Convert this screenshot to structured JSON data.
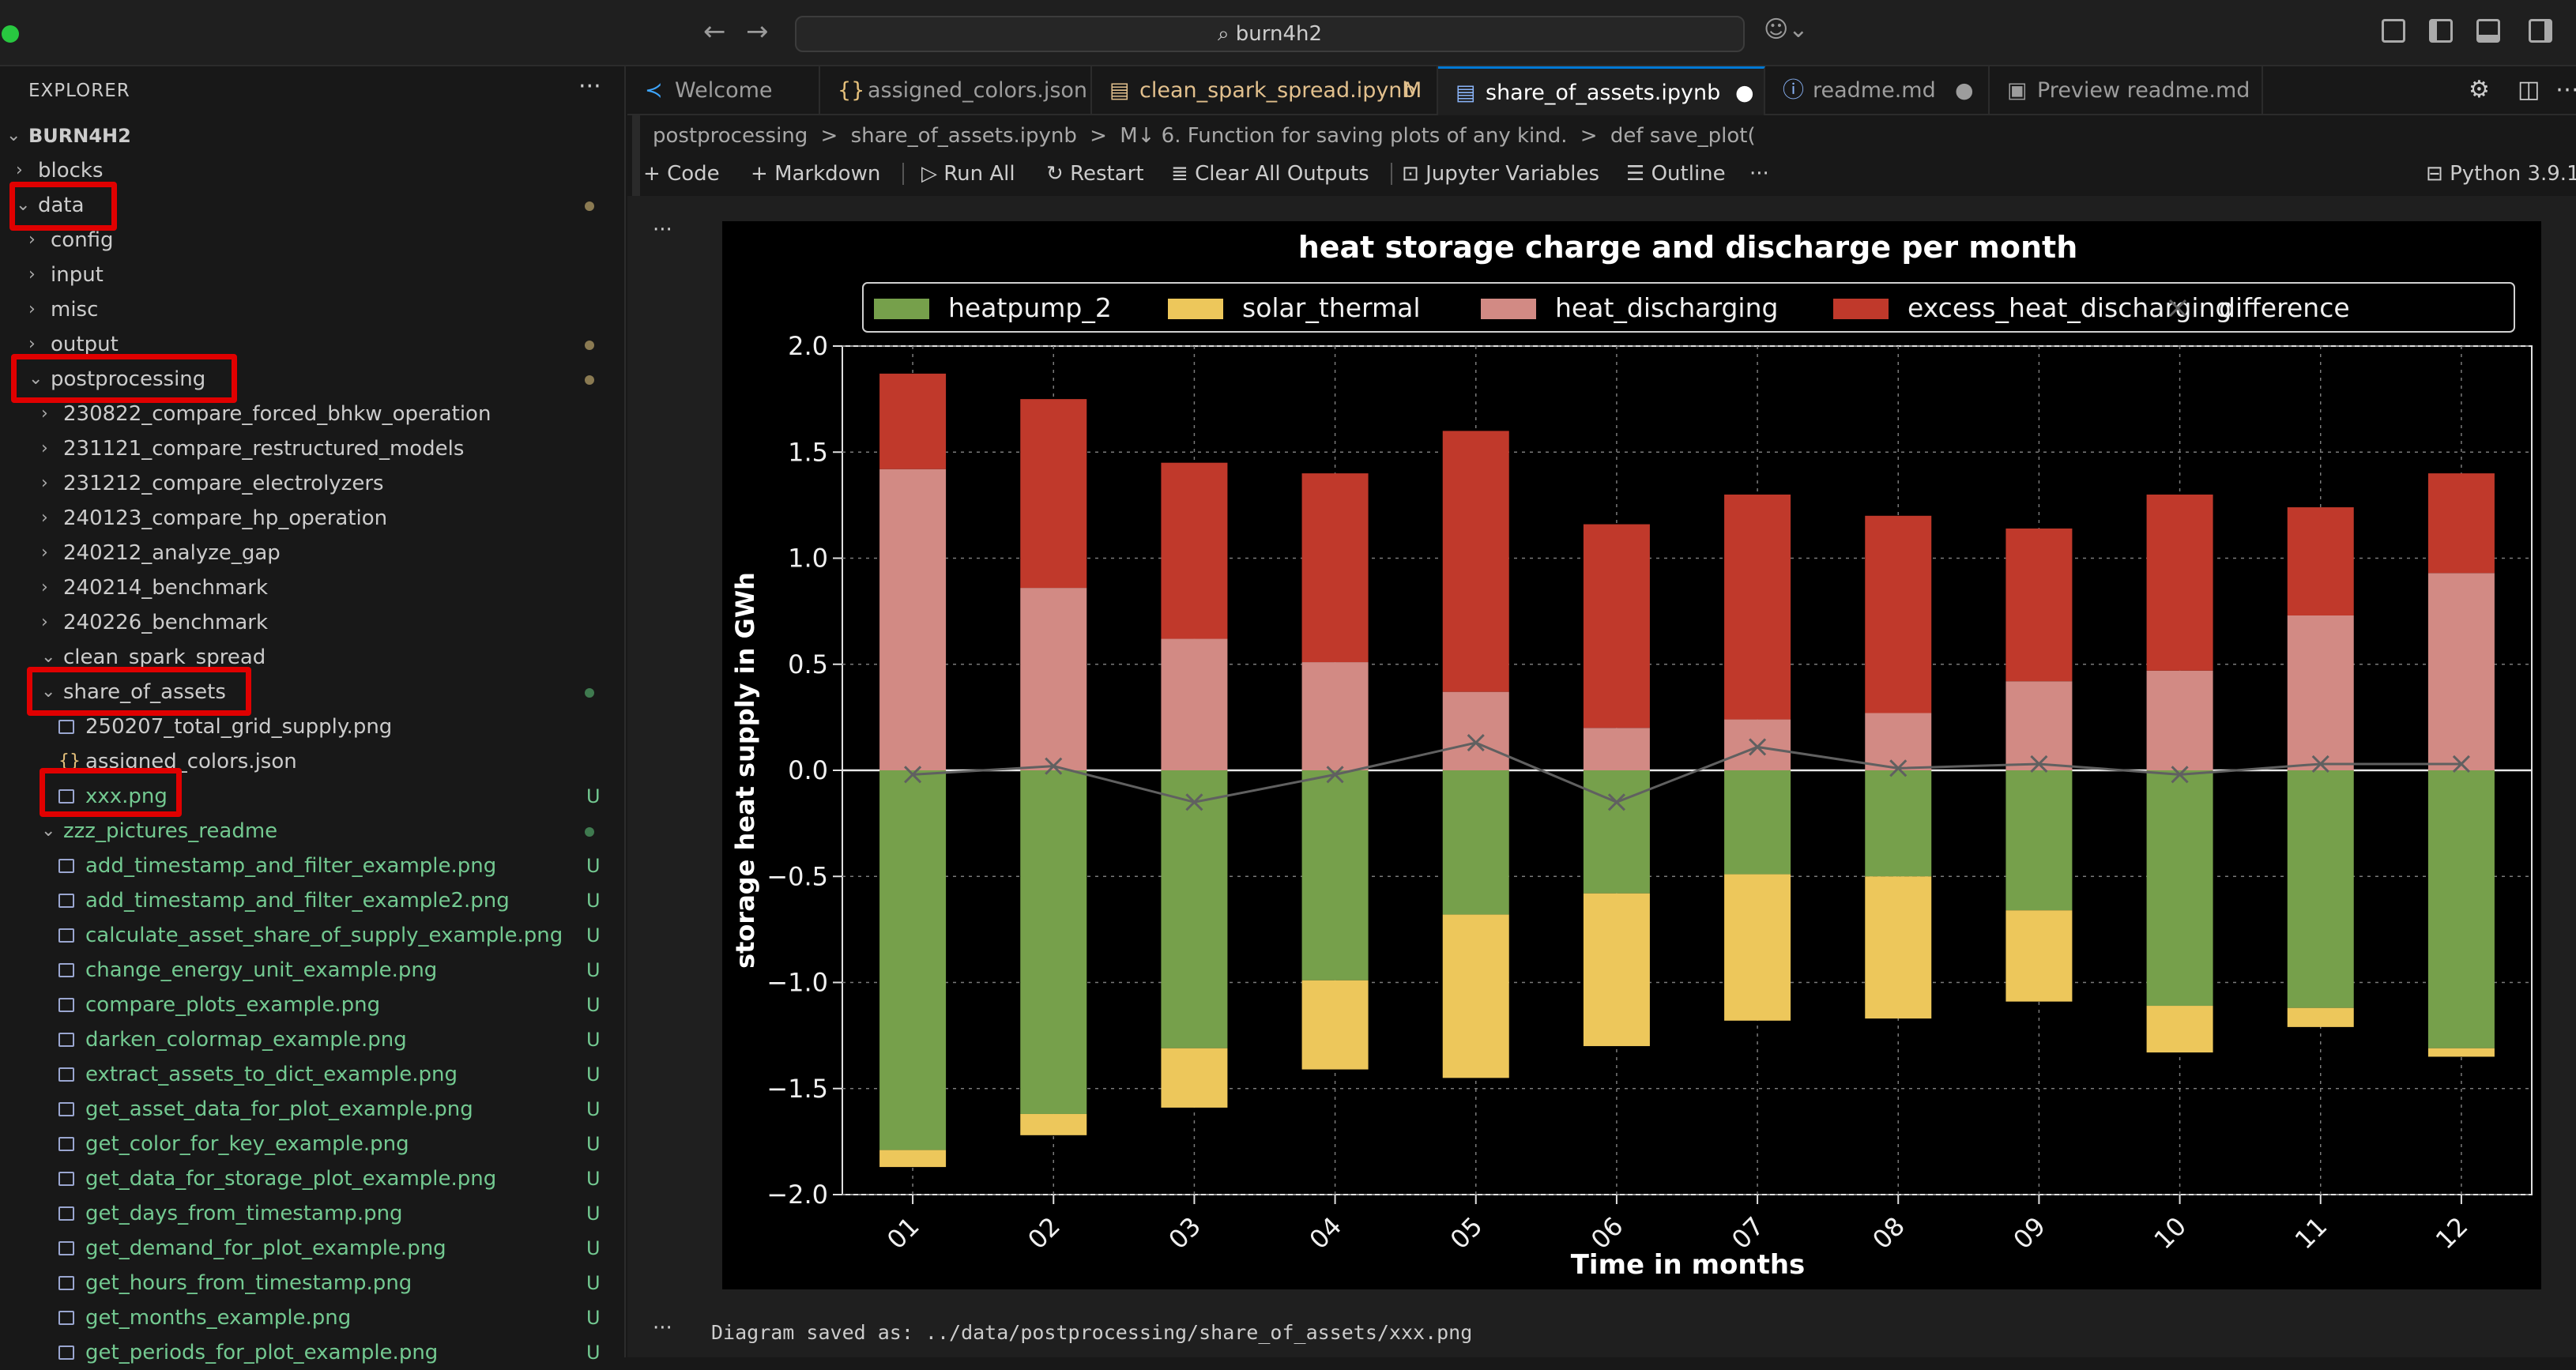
{
  "window": {
    "search_text": "burn4h2"
  },
  "explorer": {
    "title": "EXPLORER",
    "more": "···",
    "root": "BURN4H2",
    "items": [
      {
        "label": "blocks",
        "chev": "›",
        "depth": 0,
        "color": "#cccccc",
        "kind": "folder",
        "status": ""
      },
      {
        "label": "data",
        "chev": "⌄",
        "depth": 0,
        "color": "#cccccc",
        "kind": "folder",
        "status": "dot"
      },
      {
        "label": "config",
        "chev": "›",
        "depth": 1,
        "color": "#cccccc",
        "kind": "folder",
        "status": ""
      },
      {
        "label": "input",
        "chev": "›",
        "depth": 1,
        "color": "#cccccc",
        "kind": "folder",
        "status": ""
      },
      {
        "label": "misc",
        "chev": "›",
        "depth": 1,
        "color": "#cccccc",
        "kind": "folder",
        "status": ""
      },
      {
        "label": "output",
        "chev": "›",
        "depth": 1,
        "color": "#cccccc",
        "kind": "folder",
        "status": "dot"
      },
      {
        "label": "postprocessing",
        "chev": "⌄",
        "depth": 1,
        "color": "#cccccc",
        "kind": "folder",
        "status": "dot"
      },
      {
        "label": "230822_compare_forced_bhkw_operation",
        "chev": "›",
        "depth": 2,
        "color": "#cccccc",
        "kind": "folder",
        "status": ""
      },
      {
        "label": "231121_compare_restructured_models",
        "chev": "›",
        "depth": 2,
        "color": "#cccccc",
        "kind": "folder",
        "status": ""
      },
      {
        "label": "231212_compare_electrolyzers",
        "chev": "›",
        "depth": 2,
        "color": "#cccccc",
        "kind": "folder",
        "status": ""
      },
      {
        "label": "240123_compare_hp_operation",
        "chev": "›",
        "depth": 2,
        "color": "#cccccc",
        "kind": "folder",
        "status": ""
      },
      {
        "label": "240212_analyze_gap",
        "chev": "›",
        "depth": 2,
        "color": "#cccccc",
        "kind": "folder",
        "status": ""
      },
      {
        "label": "240214_benchmark",
        "chev": "›",
        "depth": 2,
        "color": "#cccccc",
        "kind": "folder",
        "status": ""
      },
      {
        "label": "240226_benchmark",
        "chev": "›",
        "depth": 2,
        "color": "#cccccc",
        "kind": "folder",
        "status": ""
      },
      {
        "label": "clean_spark_spread",
        "chev": "⌄",
        "depth": 2,
        "color": "#cccccc",
        "kind": "folder",
        "status": ""
      },
      {
        "label": "share_of_assets",
        "chev": "⌄",
        "depth": 2,
        "color": "#cccccc",
        "kind": "folder",
        "status": "dot-green"
      },
      {
        "label": "250207_total_grid_supply.png",
        "chev": "",
        "depth": 3,
        "color": "#cccccc",
        "kind": "image",
        "status": ""
      },
      {
        "label": "assigned_colors.json",
        "chev": "",
        "depth": 3,
        "color": "#cccccc",
        "kind": "json",
        "status": ""
      },
      {
        "label": "xxx.png",
        "chev": "",
        "depth": 3,
        "color": "#73c991",
        "kind": "image",
        "status": "U"
      },
      {
        "label": "zzz_pictures_readme",
        "chev": "⌄",
        "depth": 2,
        "color": "#73c991",
        "kind": "folder",
        "status": "dot-green"
      },
      {
        "label": "add_timestamp_and_filter_example.png",
        "chev": "",
        "depth": 3,
        "color": "#73c991",
        "kind": "image",
        "status": "U"
      },
      {
        "label": "add_timestamp_and_filter_example2.png",
        "chev": "",
        "depth": 3,
        "color": "#73c991",
        "kind": "image",
        "status": "U"
      },
      {
        "label": "calculate_asset_share_of_supply_example.png",
        "chev": "",
        "depth": 3,
        "color": "#73c991",
        "kind": "image",
        "status": "U"
      },
      {
        "label": "change_energy_unit_example.png",
        "chev": "",
        "depth": 3,
        "color": "#73c991",
        "kind": "image",
        "status": "U"
      },
      {
        "label": "compare_plots_example.png",
        "chev": "",
        "depth": 3,
        "color": "#73c991",
        "kind": "image",
        "status": "U"
      },
      {
        "label": "darken_colormap_example.png",
        "chev": "",
        "depth": 3,
        "color": "#73c991",
        "kind": "image",
        "status": "U"
      },
      {
        "label": "extract_assets_to_dict_example.png",
        "chev": "",
        "depth": 3,
        "color": "#73c991",
        "kind": "image",
        "status": "U"
      },
      {
        "label": "get_asset_data_for_plot_example.png",
        "chev": "",
        "depth": 3,
        "color": "#73c991",
        "kind": "image",
        "status": "U"
      },
      {
        "label": "get_color_for_key_example.png",
        "chev": "",
        "depth": 3,
        "color": "#73c991",
        "kind": "image",
        "status": "U"
      },
      {
        "label": "get_data_for_storage_plot_example.png",
        "chev": "",
        "depth": 3,
        "color": "#73c991",
        "kind": "image",
        "status": "U"
      },
      {
        "label": "get_days_from_timestamp.png",
        "chev": "",
        "depth": 3,
        "color": "#73c991",
        "kind": "image",
        "status": "U"
      },
      {
        "label": "get_demand_for_plot_example.png",
        "chev": "",
        "depth": 3,
        "color": "#73c991",
        "kind": "image",
        "status": "U"
      },
      {
        "label": "get_hours_from_timestamp.png",
        "chev": "",
        "depth": 3,
        "color": "#73c991",
        "kind": "image",
        "status": "U"
      },
      {
        "label": "get_months_example.png",
        "chev": "",
        "depth": 3,
        "color": "#73c991",
        "kind": "image",
        "status": "U"
      },
      {
        "label": "get_periods_for_plot_example.png",
        "chev": "",
        "depth": 3,
        "color": "#73c991",
        "kind": "image",
        "status": "U"
      }
    ]
  },
  "tabs": [
    {
      "label": "Welcome",
      "icon": "vscode-icon",
      "mod": "",
      "active": false
    },
    {
      "label": "assigned_colors.json",
      "icon": "json-icon",
      "mod": "",
      "active": false
    },
    {
      "label": "clean_spark_spread.ipynb",
      "icon": "notebook-icon",
      "mod": "M",
      "active": false
    },
    {
      "label": "share_of_assets.ipynb",
      "icon": "notebook-icon",
      "mod": "●",
      "active": true
    },
    {
      "label": "readme.md",
      "icon": "info-icon",
      "mod": "●",
      "active": false
    },
    {
      "label": "Preview readme.md",
      "icon": "preview-icon",
      "mod": "",
      "active": false
    }
  ],
  "breadcrumbs": [
    "postprocessing",
    ">",
    "share_of_assets.ipynb",
    ">",
    "M↓ 6. Function for saving plots of any kind.",
    ">",
    "def save_plot("
  ],
  "toolbar": {
    "code": "Code",
    "markdown": "Markdown",
    "run_all": "Run All",
    "restart": "Restart",
    "clear_outputs": "Clear All Outputs",
    "variables": "Jupyter Variables",
    "outline": "Outline",
    "more": "···",
    "kernel": "Python 3.9.1"
  },
  "cell": {
    "gutter": "···",
    "output_text": "Diagram saved as: ../data/postprocessing/share_of_assets/xxx.png"
  },
  "chart_data": {
    "type": "bar",
    "title": "heat storage charge and discharge per month",
    "xlabel": "Time in months",
    "ylabel": "storage heat supply in GWh",
    "ylim": [
      -2.0,
      2.0
    ],
    "yticks": [
      "2.0",
      "1.5",
      "1.0",
      "0.5",
      "0.0",
      "−0.5",
      "−1.0",
      "−1.5",
      "−2.0"
    ],
    "categories": [
      "01",
      "02",
      "03",
      "04",
      "05",
      "06",
      "07",
      "08",
      "09",
      "10",
      "11",
      "12"
    ],
    "series": [
      {
        "name": "heatpump_2",
        "color": "#76a04b",
        "values": [
          -1.79,
          -1.62,
          -1.31,
          -0.99,
          -0.68,
          -0.58,
          -0.49,
          -0.5,
          -0.66,
          -1.11,
          -1.12,
          -1.31
        ]
      },
      {
        "name": "solar_thermal",
        "color": "#edc75b",
        "values": [
          -0.08,
          -0.1,
          -0.28,
          -0.42,
          -0.77,
          -0.72,
          -0.69,
          -0.67,
          -0.43,
          -0.22,
          -0.09,
          -0.04
        ]
      },
      {
        "name": "heat_discharging",
        "color": "#d28a84",
        "values": [
          1.42,
          0.86,
          0.62,
          0.51,
          0.37,
          0.2,
          0.24,
          0.27,
          0.42,
          0.47,
          0.73,
          0.93
        ]
      },
      {
        "name": "excess_heat_discharging",
        "color": "#c0392b",
        "values": [
          0.45,
          0.89,
          0.83,
          0.89,
          1.23,
          0.96,
          1.06,
          0.93,
          0.72,
          0.83,
          0.51,
          0.47
        ]
      }
    ],
    "difference": {
      "name": "difference",
      "color": "#606060",
      "values": [
        -0.02,
        0.02,
        -0.15,
        -0.02,
        0.13,
        -0.15,
        0.11,
        0.01,
        0.03,
        -0.02,
        0.03,
        0.03
      ]
    },
    "legend": "top",
    "grid": true
  }
}
